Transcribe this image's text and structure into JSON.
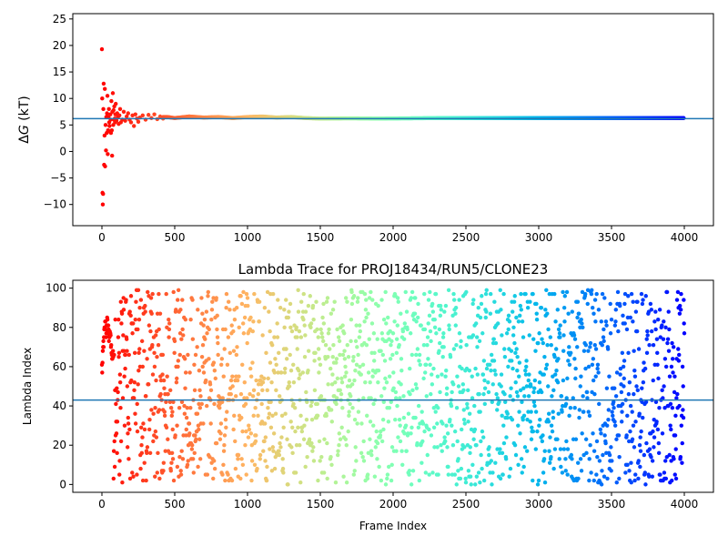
{
  "chart_data": [
    {
      "type": "scatter",
      "title": "",
      "xlabel": "",
      "ylabel": "ΔG (kT)",
      "ylabel_parts": {
        "symbol": "Δ",
        "var": "G",
        "unit": " (kT)"
      },
      "xlim": [
        -200,
        4200
      ],
      "ylim": [
        -14,
        26
      ],
      "xticks": [
        0,
        500,
        1000,
        1500,
        2000,
        2500,
        3000,
        3500,
        4000
      ],
      "yticks": [
        -10,
        -5,
        0,
        5,
        10,
        15,
        20,
        25
      ],
      "colormap": "rainbow (reversed: red at frame 0, violet at frame 4000)",
      "hline": {
        "y": 6.2,
        "color": "#1f77b4"
      },
      "series": [
        {
          "x": [
            0,
            2,
            4,
            6,
            8,
            10,
            12,
            15,
            18,
            20,
            22,
            25,
            28,
            30,
            33,
            35,
            38,
            40,
            42,
            45,
            48,
            50,
            52,
            55,
            58,
            60,
            62,
            65,
            68,
            70,
            72,
            75,
            78,
            80,
            82,
            85,
            88,
            90,
            92,
            95,
            98,
            100,
            105,
            110,
            115,
            120,
            125,
            130,
            140,
            150,
            160,
            170,
            180,
            190,
            200,
            210,
            220,
            230,
            240,
            250,
            260,
            280,
            300,
            320,
            340,
            360,
            380,
            400,
            420
          ],
          "y": [
            19.3,
            10.0,
            -7.8,
            -10.0,
            -8.0,
            8.0,
            12.8,
            -2.5,
            3.0,
            11.8,
            -2.8,
            5.0,
            0.2,
            6.5,
            3.5,
            7.2,
            10.5,
            -0.5,
            4.0,
            6.5,
            8.0,
            5.5,
            4.8,
            3.8,
            7.0,
            6.0,
            3.5,
            9.5,
            4.0,
            -0.8,
            7.5,
            11.0,
            5.0,
            7.8,
            6.0,
            8.5,
            6.2,
            5.5,
            7.0,
            9.0,
            6.0,
            5.8,
            7.2,
            6.5,
            5.2,
            6.8,
            8.0,
            5.5,
            6.0,
            7.5,
            5.8,
            6.6,
            7.2,
            6.0,
            5.5,
            6.8,
            4.8,
            7.0,
            6.2,
            5.6,
            6.4,
            6.8,
            6.0,
            6.9,
            6.3,
            7.0,
            6.1,
            6.6,
            6.2
          ],
          "trend": {
            "x": [
              450,
              500,
              600,
              700,
              800,
              900,
              1000,
              1100,
              1200,
              1300,
              1400,
              1500,
              1700,
              1900,
              2100,
              2300,
              2500,
              2700,
              2900,
              3100,
              3300,
              3500,
              3700,
              3900,
              4000
            ],
            "y": [
              6.5,
              6.3,
              6.6,
              6.4,
              6.5,
              6.3,
              6.5,
              6.6,
              6.4,
              6.5,
              6.3,
              6.2,
              6.25,
              6.2,
              6.25,
              6.3,
              6.3,
              6.3,
              6.3,
              6.3,
              6.3,
              6.3,
              6.3,
              6.3,
              6.3
            ]
          }
        }
      ]
    },
    {
      "type": "scatter",
      "title": "Lambda Trace for PROJ18434/RUN5/CLONE23",
      "xlabel": "Frame Index",
      "ylabel": "Lambda Index",
      "xlim": [
        -200,
        4200
      ],
      "ylim": [
        -4,
        104
      ],
      "xticks": [
        0,
        500,
        1000,
        1500,
        2000,
        2500,
        3000,
        3500,
        4000
      ],
      "yticks": [
        0,
        20,
        40,
        60,
        80,
        100
      ],
      "colormap": "rainbow (reversed: red at frame 0, violet at frame 4000)",
      "hline": {
        "y": 43,
        "color": "#1f77b4"
      },
      "series": [
        {
          "n_points": 4001,
          "x_range": [
            0,
            4000
          ],
          "y_range": [
            0,
            99
          ],
          "distribution": "random walk sampled over lambda indices 0–99"
        }
      ]
    }
  ]
}
